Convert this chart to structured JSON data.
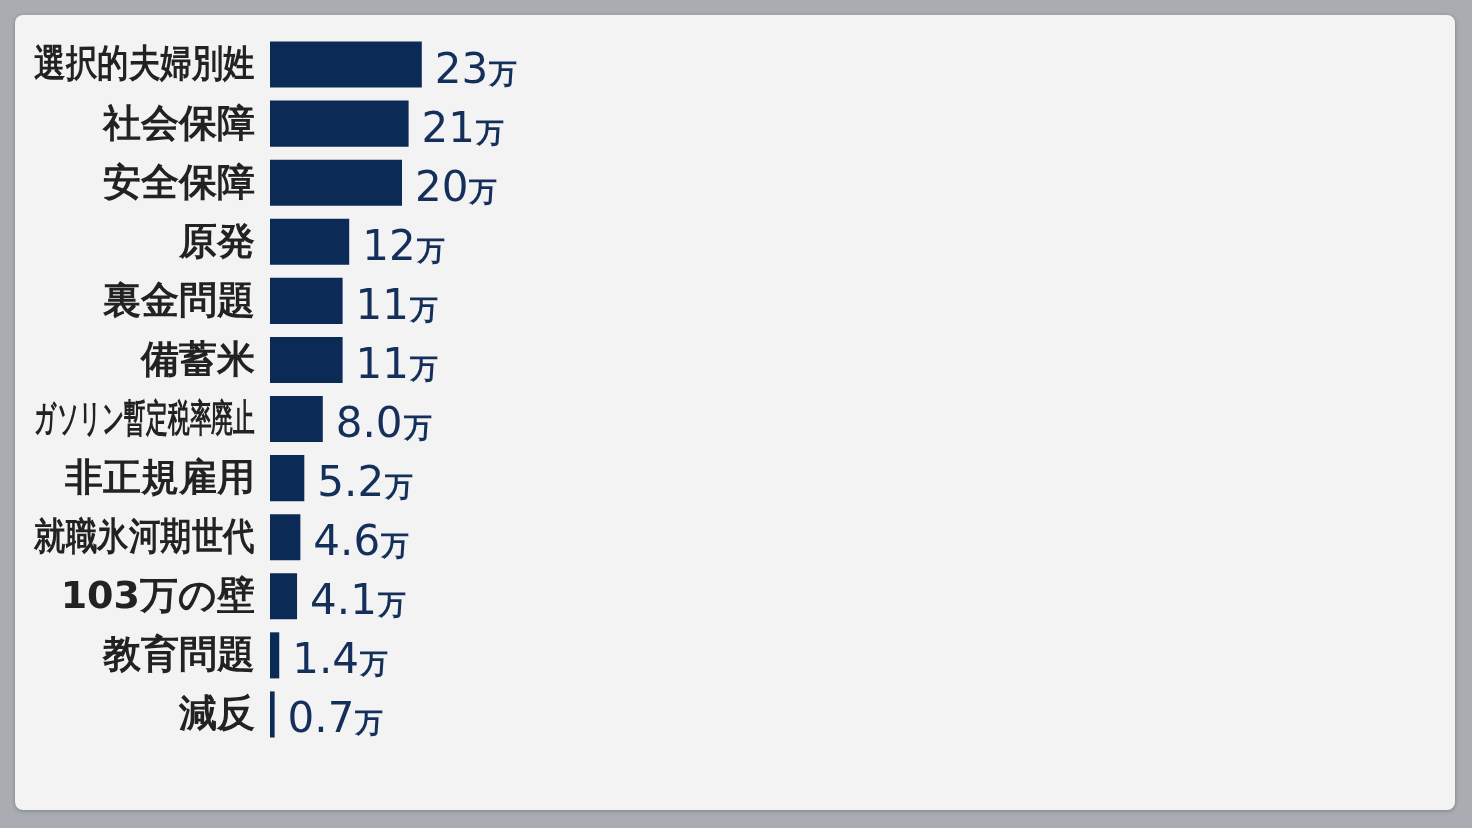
{
  "chart_data": {
    "type": "bar",
    "orientation": "horizontal",
    "categories": [
      "選択的夫婦別姓",
      "社会保障",
      "安全保障",
      "原発",
      "裏金問題",
      "備蓄米",
      "ガソリン暫定税率廃止",
      "非正規雇用",
      "就職氷河期世代",
      "103万の壁",
      "教育問題",
      "減反"
    ],
    "values": [
      23,
      21,
      20,
      12,
      11,
      11,
      8.0,
      5.2,
      4.6,
      4.1,
      1.4,
      0.7
    ],
    "value_labels": [
      "23万",
      "21万",
      "20万",
      "12万",
      "11万",
      "11万",
      "8.0万",
      "5.2万",
      "4.6万",
      "4.1万",
      "1.4万",
      "0.7万"
    ],
    "color": "#0b2a56",
    "tick_labels": "y"
  }
}
